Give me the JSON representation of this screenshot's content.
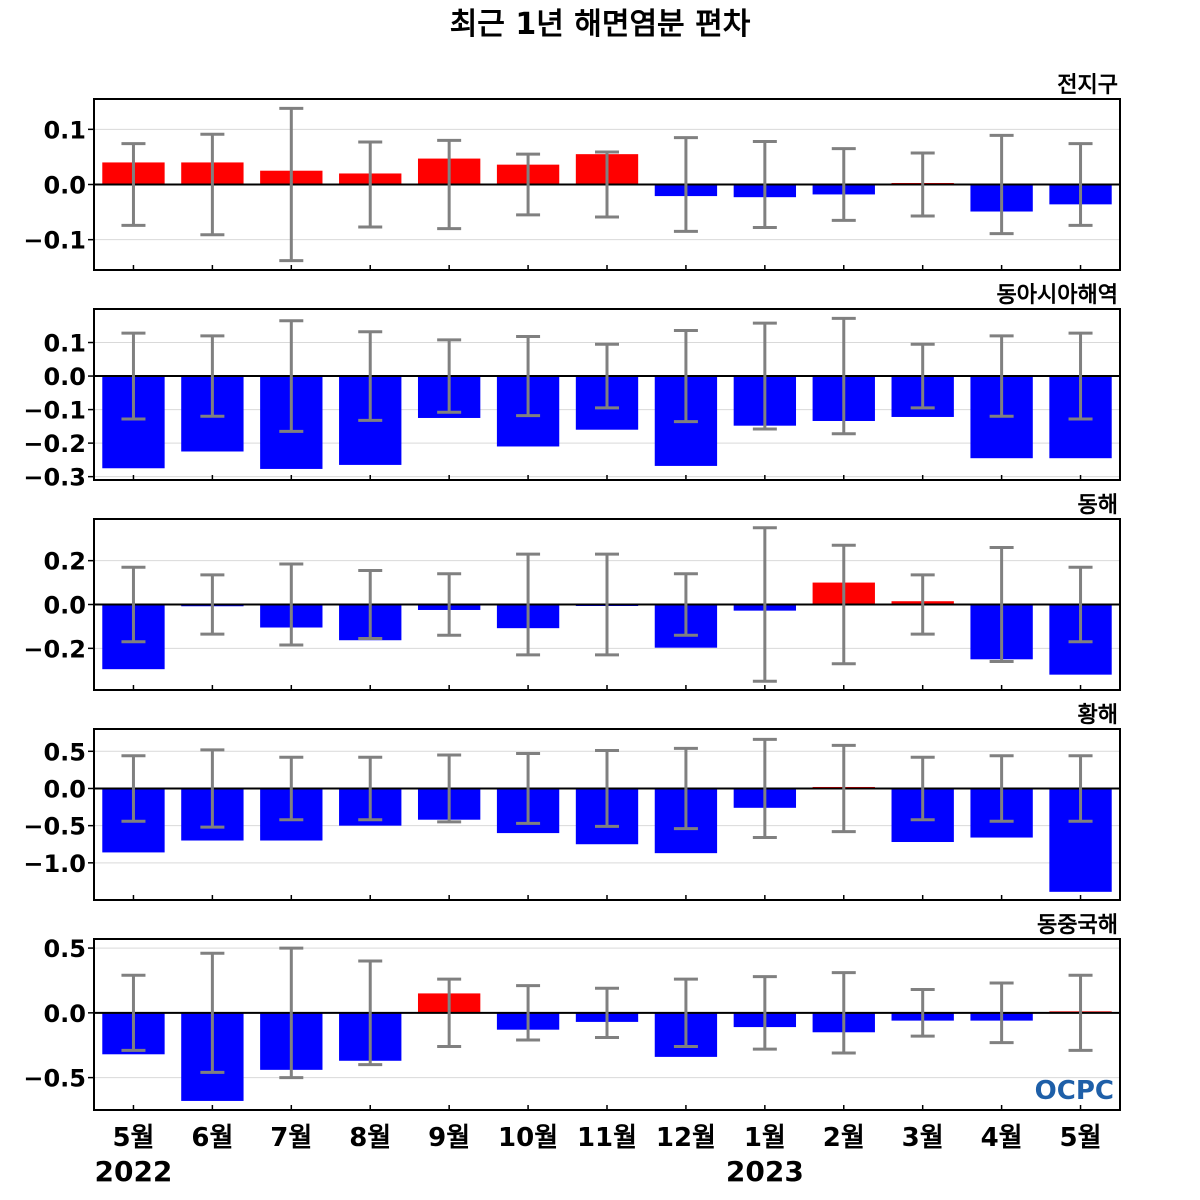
{
  "title": "최근 1년 해면염분 편차",
  "logo_text": "OCPC",
  "colors": {
    "positive": "#ff0000",
    "negative": "#0000ff",
    "errorbar": "#808080",
    "zero_line": "#000000",
    "grid": "#d9d9d9",
    "logo": "#1e5fa8"
  },
  "chart_data": {
    "type": "bar",
    "categories": [
      "5월",
      "6월",
      "7월",
      "8월",
      "9월",
      "10월",
      "11월",
      "12월",
      "1월",
      "2월",
      "3월",
      "4월",
      "5월"
    ],
    "years": [
      {
        "label": "2022",
        "category_index": 0
      },
      {
        "label": "2023",
        "category_index": 8
      }
    ],
    "panels": [
      {
        "name": "전지구",
        "ylim": [
          -0.155,
          0.155
        ],
        "yticks": [
          0.1,
          0.0,
          -0.1
        ],
        "yticklabels": [
          "0.1",
          "0.0",
          "−0.1"
        ],
        "values": [
          0.04,
          0.04,
          0.025,
          0.02,
          0.047,
          0.036,
          0.055,
          -0.021,
          -0.023,
          -0.018,
          0.002,
          -0.049,
          -0.036
        ],
        "error": [
          0.074,
          0.091,
          0.138,
          0.077,
          0.08,
          0.055,
          0.059,
          0.085,
          0.078,
          0.065,
          0.057,
          0.089,
          0.074
        ]
      },
      {
        "name": "동아시아해역",
        "ylim": [
          -0.31,
          0.2
        ],
        "yticks": [
          0.1,
          0.0,
          -0.1,
          -0.2,
          -0.3
        ],
        "yticklabels": [
          "0.1",
          "0.0",
          "−0.1",
          "−0.2",
          "−0.3"
        ],
        "values": [
          -0.275,
          -0.225,
          -0.277,
          -0.265,
          -0.125,
          -0.21,
          -0.16,
          -0.268,
          -0.148,
          -0.134,
          -0.122,
          -0.245,
          -0.245
        ],
        "error": [
          0.128,
          0.12,
          0.165,
          0.132,
          0.108,
          0.118,
          0.095,
          0.136,
          0.158,
          0.172,
          0.095,
          0.12,
          0.128
        ]
      },
      {
        "name": "동해",
        "ylim": [
          -0.39,
          0.39
        ],
        "yticks": [
          0.2,
          0.0,
          -0.2
        ],
        "yticklabels": [
          "0.2",
          "0.0",
          "−0.2"
        ],
        "values": [
          -0.295,
          -0.008,
          -0.105,
          -0.163,
          -0.025,
          -0.108,
          -0.005,
          -0.197,
          -0.028,
          0.1,
          0.015,
          -0.25,
          -0.32
        ],
        "error": [
          0.17,
          0.135,
          0.185,
          0.155,
          0.14,
          0.23,
          0.23,
          0.14,
          0.35,
          0.27,
          0.135,
          0.26,
          0.17
        ]
      },
      {
        "name": "황해",
        "ylim": [
          -1.5,
          0.8
        ],
        "yticks": [
          0.5,
          0.0,
          -0.5,
          -1.0
        ],
        "yticklabels": [
          "0.5",
          "0.0",
          "−0.5",
          "−1.0"
        ],
        "values": [
          -0.86,
          -0.7,
          -0.7,
          -0.5,
          -0.42,
          -0.6,
          -0.75,
          -0.87,
          -0.26,
          0.01,
          -0.72,
          -0.66,
          -1.39
        ],
        "error": [
          0.44,
          0.52,
          0.42,
          0.42,
          0.45,
          0.47,
          0.51,
          0.54,
          0.66,
          0.58,
          0.42,
          0.44,
          0.44
        ]
      },
      {
        "name": "동중국해",
        "ylim": [
          -0.75,
          0.57
        ],
        "yticks": [
          0.5,
          0.0,
          -0.5
        ],
        "yticklabels": [
          "0.5",
          "0.0",
          "−0.5"
        ],
        "values": [
          -0.32,
          -0.68,
          -0.44,
          -0.37,
          0.15,
          -0.13,
          -0.07,
          -0.34,
          -0.11,
          -0.15,
          -0.06,
          -0.06,
          0.005
        ],
        "error": [
          0.29,
          0.46,
          0.5,
          0.4,
          0.26,
          0.21,
          0.19,
          0.26,
          0.28,
          0.31,
          0.18,
          0.23,
          0.29
        ]
      }
    ]
  }
}
